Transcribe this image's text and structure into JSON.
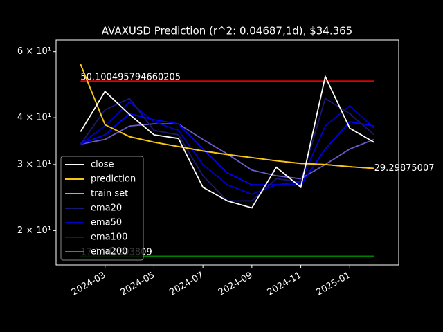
{
  "chart_data": {
    "type": "line",
    "title": "AVAXUSD Prediction (r^2: 0.04687,1d), $34.365",
    "x": [
      "2024-02",
      "2024-03",
      "2024-04",
      "2024-05",
      "2024-06",
      "2024-07",
      "2024-08",
      "2024-09",
      "2024-10",
      "2024-11",
      "2024-12",
      "2025-01",
      "2025-02"
    ],
    "series": [
      {
        "name": "close",
        "color": "#ffffff",
        "values": [
          36.7,
          47,
          40.8,
          36,
          35.2,
          26.1,
          24,
          23,
          29.5,
          26.1,
          51.5,
          37.5,
          34.365
        ]
      },
      {
        "name": "prediction",
        "color": "#f5c518",
        "values": [
          55.5,
          38.3,
          35.6,
          34.4,
          33.5,
          32.6,
          31.9,
          31.3,
          30.7,
          30.2,
          30,
          29.6,
          29.29875007
        ]
      },
      {
        "name": "train set",
        "color": "#ffa500",
        "values": [
          55.5,
          38.3,
          35.6,
          34.4,
          33.5,
          32.6,
          31.9,
          31.3,
          30.7,
          30.2,
          30,
          29.6,
          29.3
        ]
      },
      {
        "name": "ema20",
        "color": "#191970",
        "values": [
          34,
          42,
          45,
          37,
          36,
          28,
          24,
          24,
          27.5,
          27,
          45,
          41,
          36
        ]
      },
      {
        "name": "ema50",
        "color": "#0000cd",
        "values": [
          34,
          38,
          44,
          39,
          37,
          30,
          26.5,
          25,
          26.5,
          27,
          38,
          43,
          37.5
        ]
      },
      {
        "name": "ema100",
        "color": "#0000ff",
        "values": [
          34,
          36,
          41,
          39.5,
          38.5,
          33,
          28.5,
          26.5,
          26.5,
          26.5,
          33,
          39,
          38
        ]
      },
      {
        "name": "ema200",
        "color": "#6a5acd",
        "values": [
          34,
          35,
          38,
          38.5,
          38.5,
          35,
          32,
          29,
          28,
          27.5,
          30,
          33,
          35
        ]
      }
    ],
    "hlines": [
      {
        "value": 50.100495794660205,
        "color": "#ff0000"
      },
      {
        "value": 17.1042393809,
        "color": "#008000"
      }
    ],
    "log_y": true,
    "xlim": [
      "2024-01",
      "2025-03"
    ],
    "xticks": [
      "2024-03",
      "2024-05",
      "2024-07",
      "2024-09",
      "2024-11",
      "2025-01"
    ],
    "ylim": [
      16.2,
      64.4
    ],
    "yticks": [
      {
        "value": 20,
        "label": "2 × 10¹"
      },
      {
        "value": 30,
        "label": "3 × 10¹"
      },
      {
        "value": 40,
        "label": "4 × 10¹"
      },
      {
        "value": 60,
        "label": "6 × 10¹"
      }
    ],
    "legend": "lower left"
  }
}
